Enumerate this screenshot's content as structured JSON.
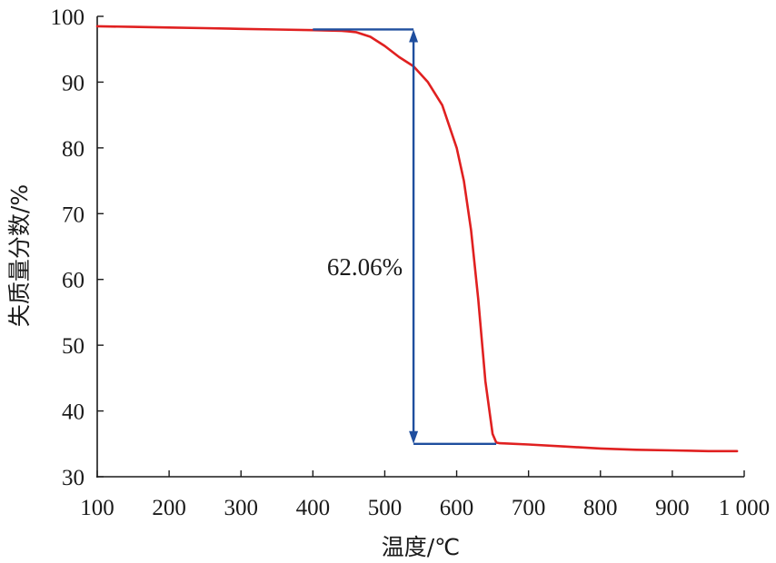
{
  "chart_data": {
    "type": "line",
    "xlabel": "温度/℃",
    "ylabel": "失质量分数/%",
    "xlim": [
      100,
      1000
    ],
    "ylim": [
      30,
      100
    ],
    "x_ticks": [
      "100",
      "200",
      "300",
      "400",
      "500",
      "600",
      "700",
      "800",
      "900",
      "1 000"
    ],
    "y_ticks": [
      "30",
      "40",
      "50",
      "60",
      "70",
      "80",
      "90",
      "100"
    ],
    "grid": false,
    "series": [
      {
        "color": "#e02020",
        "x": [
          100,
          150,
          200,
          250,
          300,
          350,
          400,
          440,
          460,
          480,
          500,
          520,
          540,
          560,
          580,
          600,
          610,
          620,
          630,
          640,
          650,
          655,
          660,
          700,
          750,
          800,
          850,
          900,
          950,
          990
        ],
        "y": [
          98.5,
          98.4,
          98.3,
          98.2,
          98.1,
          98.0,
          97.9,
          97.8,
          97.6,
          96.9,
          95.5,
          93.8,
          92.4,
          90.0,
          86.5,
          80.0,
          75.0,
          67.5,
          57.0,
          44.5,
          36.5,
          35.2,
          35.1,
          34.9,
          34.6,
          34.3,
          34.1,
          34.0,
          33.9,
          33.9
        ]
      }
    ],
    "annotation": {
      "text": "62.06%",
      "x": 540,
      "y_top": 98,
      "y_bottom": 35,
      "color": "#1f4e9e"
    }
  }
}
